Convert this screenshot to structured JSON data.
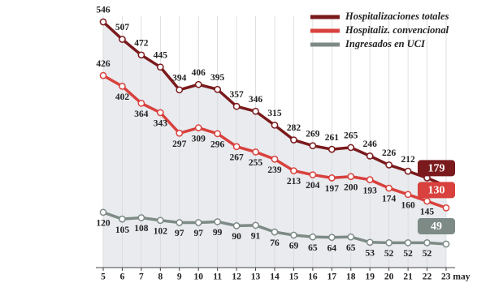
{
  "chart_data": {
    "type": "line",
    "categories": [
      "5",
      "6",
      "7",
      "8",
      "9",
      "10",
      "11",
      "12",
      "13",
      "14",
      "15",
      "16",
      "17",
      "18",
      "19",
      "20",
      "21",
      "22",
      "23 may"
    ],
    "series": [
      {
        "name": "Hospitalizaciones totales",
        "color": "#7a1a1c",
        "values": [
          546,
          507,
          472,
          445,
          394,
          406,
          395,
          357,
          346,
          315,
          282,
          269,
          261,
          265,
          246,
          226,
          212,
          197,
          179
        ]
      },
      {
        "name": "Hospitaliz. convencional",
        "color": "#d8413d",
        "values": [
          426,
          402,
          364,
          343,
          297,
          309,
          296,
          267,
          255,
          239,
          213,
          204,
          197,
          200,
          193,
          174,
          160,
          145,
          130
        ]
      },
      {
        "name": "Ingresados en UCI",
        "color": "#7d8a85",
        "values": [
          120,
          105,
          108,
          102,
          97,
          97,
          99,
          90,
          91,
          76,
          69,
          65,
          64,
          65,
          53,
          52,
          52,
          52,
          49
        ]
      }
    ]
  }
}
